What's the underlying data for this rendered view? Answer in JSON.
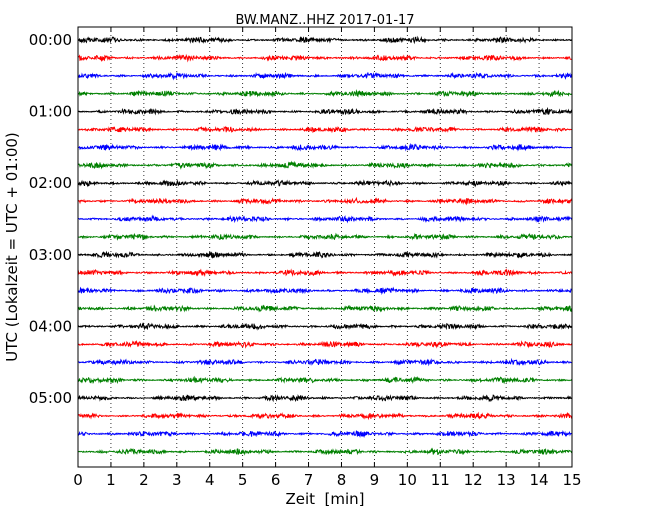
{
  "chart_data": {
    "type": "line",
    "title": "BW.MANZ..HHZ 2017-01-17",
    "xlabel": "Zeit  [min]",
    "ylabel": "UTC (Lokalzeit = UTC + 01:00)",
    "xlim": [
      0,
      15
    ],
    "x_ticks": [
      "0",
      "1",
      "2",
      "3",
      "4",
      "5",
      "6",
      "7",
      "8",
      "9",
      "10",
      "11",
      "12",
      "13",
      "14",
      "15"
    ],
    "y_tick_labels": [
      "00:00",
      "01:00",
      "02:00",
      "03:00",
      "04:00",
      "05:00"
    ],
    "grid": "vertical dotted lines at each minute",
    "trace_interval_minutes": 15,
    "traces": [
      {
        "start": "00:00",
        "color": "#000000"
      },
      {
        "start": "00:15",
        "color": "#ff0000"
      },
      {
        "start": "00:30",
        "color": "#0000ff"
      },
      {
        "start": "00:45",
        "color": "#008000"
      },
      {
        "start": "01:00",
        "color": "#000000"
      },
      {
        "start": "01:15",
        "color": "#ff0000"
      },
      {
        "start": "01:30",
        "color": "#0000ff"
      },
      {
        "start": "01:45",
        "color": "#008000"
      },
      {
        "start": "02:00",
        "color": "#000000"
      },
      {
        "start": "02:15",
        "color": "#ff0000"
      },
      {
        "start": "02:30",
        "color": "#0000ff"
      },
      {
        "start": "02:45",
        "color": "#008000"
      },
      {
        "start": "03:00",
        "color": "#000000"
      },
      {
        "start": "03:15",
        "color": "#ff0000"
      },
      {
        "start": "03:30",
        "color": "#0000ff"
      },
      {
        "start": "03:45",
        "color": "#008000"
      },
      {
        "start": "04:00",
        "color": "#000000"
      },
      {
        "start": "04:15",
        "color": "#ff0000"
      },
      {
        "start": "04:30",
        "color": "#0000ff"
      },
      {
        "start": "04:45",
        "color": "#008000"
      },
      {
        "start": "05:00",
        "color": "#000000"
      },
      {
        "start": "05:15",
        "color": "#ff0000"
      },
      {
        "start": "05:30",
        "color": "#0000ff"
      },
      {
        "start": "05:45",
        "color": "#008000"
      }
    ]
  }
}
